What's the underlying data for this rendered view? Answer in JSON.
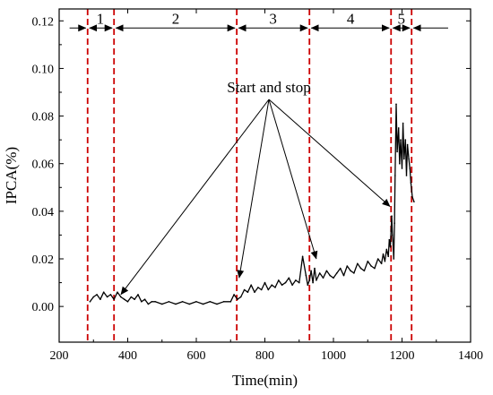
{
  "chart_data": {
    "type": "line",
    "title": "",
    "xlabel": "Time(min)",
    "ylabel": "IPCA(%)",
    "xlim": [
      200,
      1400
    ],
    "ylim": [
      -0.015,
      0.125
    ],
    "x_ticks": [
      200,
      400,
      600,
      800,
      1000,
      1200,
      1400
    ],
    "y_ticks": [
      0.0,
      0.02,
      0.04,
      0.06,
      0.08,
      0.1,
      0.12
    ],
    "x_tick_labels": [
      "200",
      "400",
      "600",
      "800",
      "1000",
      "1200",
      "1400"
    ],
    "y_tick_labels": [
      "0.00",
      "0.02",
      "0.04",
      "0.06",
      "0.08",
      "0.10",
      "0.12"
    ],
    "grid": false,
    "legend": "none",
    "series": [
      {
        "color": "#000000",
        "x": [
          290,
          300,
          310,
          320,
          330,
          340,
          350,
          360,
          370,
          380,
          390,
          400,
          410,
          420,
          430,
          440,
          450,
          460,
          470,
          480,
          500,
          520,
          540,
          560,
          580,
          600,
          620,
          640,
          660,
          680,
          700,
          710,
          720,
          730,
          740,
          750,
          760,
          770,
          780,
          790,
          800,
          810,
          820,
          830,
          840,
          850,
          860,
          870,
          880,
          890,
          900,
          910,
          920,
          925,
          930,
          935,
          940,
          945,
          950,
          960,
          970,
          980,
          990,
          1000,
          1010,
          1020,
          1030,
          1040,
          1050,
          1060,
          1070,
          1080,
          1090,
          1100,
          1110,
          1120,
          1130,
          1140,
          1145,
          1150,
          1155,
          1160,
          1163,
          1166,
          1168,
          1170,
          1172,
          1174,
          1176,
          1178,
          1180,
          1183,
          1186,
          1190,
          1193,
          1196,
          1200,
          1203,
          1206,
          1210,
          1213,
          1216,
          1220,
          1223,
          1226,
          1230,
          1235
        ],
        "y": [
          0.002,
          0.004,
          0.005,
          0.003,
          0.006,
          0.004,
          0.005,
          0.003,
          0.006,
          0.004,
          0.003,
          0.002,
          0.004,
          0.003,
          0.005,
          0.002,
          0.003,
          0.001,
          0.002,
          0.002,
          0.001,
          0.002,
          0.001,
          0.002,
          0.001,
          0.002,
          0.001,
          0.002,
          0.001,
          0.002,
          0.002,
          0.005,
          0.003,
          0.004,
          0.007,
          0.006,
          0.009,
          0.006,
          0.008,
          0.007,
          0.01,
          0.007,
          0.009,
          0.008,
          0.011,
          0.009,
          0.01,
          0.012,
          0.009,
          0.011,
          0.01,
          0.021,
          0.013,
          0.009,
          0.011,
          0.015,
          0.01,
          0.016,
          0.011,
          0.014,
          0.012,
          0.015,
          0.013,
          0.012,
          0.014,
          0.016,
          0.013,
          0.017,
          0.015,
          0.014,
          0.018,
          0.016,
          0.015,
          0.019,
          0.017,
          0.016,
          0.02,
          0.018,
          0.022,
          0.019,
          0.024,
          0.021,
          0.028,
          0.025,
          0.032,
          0.038,
          0.03,
          0.026,
          0.02,
          0.035,
          0.055,
          0.085,
          0.065,
          0.075,
          0.06,
          0.07,
          0.058,
          0.077,
          0.062,
          0.07,
          0.055,
          0.068,
          0.062,
          0.058,
          0.052,
          0.046,
          0.044
        ]
      }
    ],
    "vlines": [
      {
        "x": 283,
        "color": "#cc0000"
      },
      {
        "x": 360,
        "color": "#cc0000"
      },
      {
        "x": 718,
        "color": "#cc0000"
      },
      {
        "x": 930,
        "color": "#cc0000"
      },
      {
        "x": 1168,
        "color": "#cc0000"
      },
      {
        "x": 1228,
        "color": "#cc0000"
      }
    ],
    "segments": [
      {
        "label": "1",
        "x": 320
      },
      {
        "label": "2",
        "x": 540
      },
      {
        "label": "3",
        "x": 824
      },
      {
        "label": "4",
        "x": 1050
      },
      {
        "label": "5",
        "x": 1198
      }
    ],
    "annotation": {
      "text": "Start and stop",
      "targets": [
        [
          380,
          0.005
        ],
        [
          725,
          0.012
        ],
        [
          950,
          0.02
        ],
        [
          1165,
          0.042
        ]
      ]
    }
  }
}
